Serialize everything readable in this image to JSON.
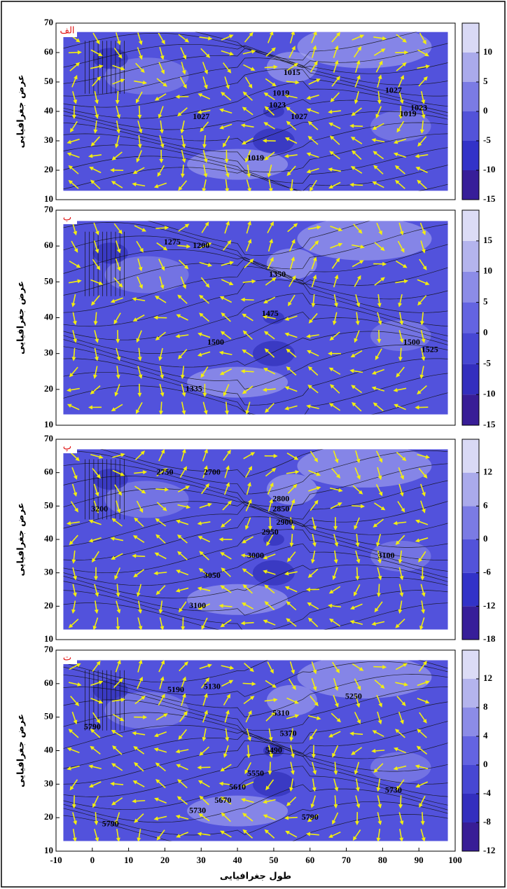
{
  "xlim": [
    -10,
    100
  ],
  "xticks": [
    -10,
    0,
    10,
    20,
    30,
    40,
    50,
    60,
    70,
    80,
    90,
    100
  ],
  "xlabel": "طول جغرافیایی",
  "panels": [
    {
      "label": "الف",
      "ylabel": "عرض جغرافیایی",
      "ylim": [
        10,
        70
      ],
      "yticks": [
        70,
        60,
        50,
        40,
        30,
        20,
        10
      ],
      "colorbar": {
        "lim": [
          -15,
          15
        ],
        "ticks": [
          10,
          5,
          0,
          -5,
          -10,
          -15
        ]
      },
      "contour_labels": [
        "1015",
        "1019",
        "1023",
        "1027",
        "1027",
        "1027",
        "1023",
        "1019",
        "1019"
      ]
    },
    {
      "label": "ب",
      "ylabel": "عرض جغرافیایی",
      "ylim": [
        10,
        70
      ],
      "yticks": [
        70,
        60,
        50,
        40,
        30,
        20,
        10
      ],
      "colorbar": {
        "lim": [
          -15,
          20
        ],
        "ticks": [
          15,
          10,
          5,
          0,
          -5,
          -10,
          -15
        ]
      },
      "contour_labels": [
        "1275",
        "1200",
        "1350",
        "1475",
        "1500",
        "1500",
        "1525",
        "1335"
      ]
    },
    {
      "label": "پ",
      "ylabel": "عرض جغرافیایی",
      "ylim": [
        10,
        70
      ],
      "yticks": [
        70,
        60,
        50,
        40,
        30,
        20,
        10
      ],
      "colorbar": {
        "lim": [
          -18,
          18
        ],
        "ticks": [
          12,
          6,
          0,
          -6,
          -12,
          -18
        ]
      },
      "contour_labels": [
        "2750",
        "2700",
        "2800",
        "2850",
        "2900",
        "2950",
        "3000",
        "3050",
        "3100",
        "3100",
        "3200"
      ]
    },
    {
      "label": "ت",
      "ylabel": "عرض جغرافیایی",
      "ylim": [
        10,
        70
      ],
      "yticks": [
        70,
        60,
        50,
        40,
        30,
        20,
        10
      ],
      "colorbar": {
        "lim": [
          -12,
          16
        ],
        "ticks": [
          12,
          8,
          4,
          0,
          -4,
          -8,
          -12
        ]
      },
      "contour_labels": [
        "5190",
        "5130",
        "5250",
        "5310",
        "5370",
        "5490",
        "5550",
        "5610",
        "5670",
        "5730",
        "5790",
        "5790",
        "5730",
        "5790"
      ]
    }
  ]
}
